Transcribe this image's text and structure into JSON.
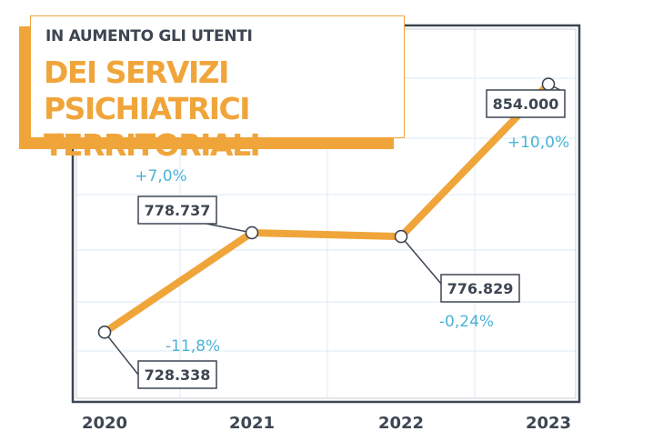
{
  "title": {
    "subtitle": "IN AUMENTO GLI UTENTI",
    "main": "DEI SERVIZI PSICHIATRICI TERRITORIALI"
  },
  "colors": {
    "line": "#f0a53a",
    "frame": "#3d4652",
    "grid": "#dcebf5",
    "percent": "#4bb3d6",
    "value_text": "#3d4652"
  },
  "chart_data": {
    "type": "line",
    "title": "IN AUMENTO GLI UTENTI DEI SERVIZI PSICHIATRICI TERRITORIALI",
    "categories": [
      "2020",
      "2021",
      "2022",
      "2023"
    ],
    "values": [
      728338,
      778737,
      776829,
      854000
    ],
    "value_labels": [
      "728.338",
      "778.737",
      "776.829",
      "854.000"
    ],
    "change_labels": [
      "-11,8%",
      "+7,0%",
      "-0,24%",
      "+10,0%"
    ],
    "ylim": [
      705000,
      875000
    ],
    "grid": true,
    "legend": "none",
    "xlabel": "",
    "ylabel": ""
  }
}
